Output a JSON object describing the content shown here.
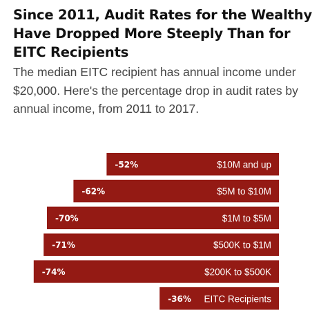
{
  "header": {
    "title": "Since 2011, Audit Rates for the Wealthy Have Dropped More Steeply Than for EITC Recipients",
    "subtitle": "The median EITC recipient has annual income under $20,000. Here's the percentage drop in audit rates by annual income, from 2011 to 2017."
  },
  "colors": {
    "bar": "#941a14",
    "title": "#111111",
    "subtitle": "#444444"
  },
  "chart_data": {
    "type": "bar",
    "orientation": "horizontal",
    "title": "Since 2011, Audit Rates for the Wealthy Have Dropped More Steeply Than for EITC Recipients",
    "subtitle": "The median EITC recipient has annual income under $20,000. Here's the percentage drop in audit rates by annual income, from 2011 to 2017.",
    "xlabel": "",
    "ylabel": "",
    "grid": false,
    "categories": [
      "$10M and up",
      "$5M to $10M",
      "$1M to $5M",
      "$500K to $1M",
      "$200K to $500K",
      "EITC Recipients"
    ],
    "values": [
      -52,
      -62,
      -70,
      -71,
      -74,
      -36
    ],
    "labels": [
      "-52%",
      "-62%",
      "-70%",
      "-71%",
      "-74%",
      "-36%"
    ]
  }
}
